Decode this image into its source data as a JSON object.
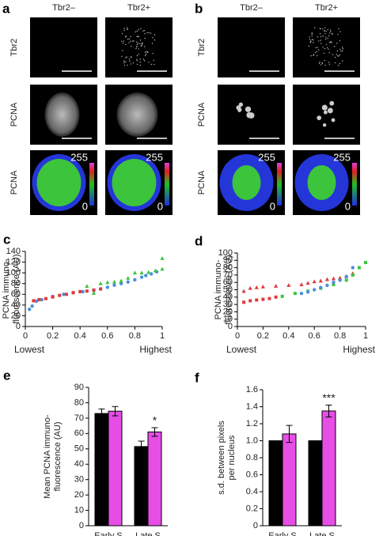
{
  "image_panels": [
    {
      "label": "a",
      "columns": [
        "Tbr2–",
        "Tbr2+"
      ],
      "rows": [
        "Tbr2",
        "PCNA",
        "PCNA"
      ],
      "scale": [
        "255",
        "0"
      ]
    },
    {
      "label": "b",
      "columns": [
        "Tbr2–",
        "Tbr2+"
      ],
      "rows": [
        "Tbr2",
        "PCNA",
        "PCNA"
      ],
      "scale": [
        "255",
        "0"
      ]
    }
  ],
  "chart_data": [
    {
      "type": "scatter",
      "label": "c",
      "ylabel": [
        "PCNA immuno-",
        "fluorescence (AU)"
      ],
      "x_end_labels": [
        "Lowest",
        "Highest"
      ],
      "xlim": [
        0,
        1
      ],
      "xticks": [
        0,
        0.2,
        0.4,
        0.6,
        0.8,
        1
      ],
      "ylim": [
        0,
        140
      ],
      "yticks": [
        0,
        20,
        40,
        60,
        80,
        100,
        120,
        140
      ],
      "grid": false,
      "series": [
        {
          "color": "#4a90d9",
          "marker": "circle",
          "x": [
            0.03,
            0.05,
            0.08,
            0.12,
            0.2,
            0.28,
            0.35,
            0.42,
            0.5,
            0.55,
            0.6,
            0.65,
            0.7,
            0.75,
            0.8,
            0.85,
            0.88,
            0.92,
            0.96
          ],
          "values": [
            32,
            38,
            47,
            50,
            56,
            60,
            63,
            65,
            67,
            70,
            73,
            77,
            80,
            83,
            87,
            92,
            95,
            98,
            102
          ]
        },
        {
          "color": "#e03a3a",
          "marker": "square",
          "x": [
            0.06,
            0.1,
            0.15,
            0.2,
            0.25,
            0.3,
            0.35,
            0.4,
            0.45,
            0.5,
            0.55
          ],
          "values": [
            48,
            50,
            52,
            55,
            58,
            60,
            63,
            65,
            66,
            68,
            70
          ]
        },
        {
          "color": "#3cc43c",
          "marker": "triangle",
          "x": [
            0.45,
            0.5,
            0.55,
            0.6,
            0.65,
            0.7,
            0.75,
            0.8,
            0.85,
            0.9,
            0.95,
            1,
            1
          ],
          "values": [
            75,
            62,
            80,
            82,
            83,
            85,
            90,
            100,
            100,
            101,
            104,
            107,
            127
          ]
        }
      ]
    },
    {
      "type": "scatter",
      "label": "d",
      "ylabel": [
        "PCNA immuno-",
        "fluorescence (AU)"
      ],
      "x_end_labels": [
        "Lowest",
        "Highest"
      ],
      "xlim": [
        0,
        1
      ],
      "xticks": [
        0,
        0.2,
        0.4,
        0.6,
        0.8,
        1
      ],
      "ylim": [
        0,
        100
      ],
      "yticks": [
        0,
        10,
        20,
        30,
        40,
        50,
        60,
        70,
        80,
        90,
        100
      ],
      "grid": false,
      "series": [
        {
          "color": "#e03a3a",
          "marker": "triangle",
          "x": [
            0.05,
            0.1,
            0.15,
            0.2,
            0.3,
            0.4,
            0.5,
            0.55,
            0.6,
            0.65,
            0.7,
            0.75,
            0.8,
            0.85,
            0.9
          ],
          "values": [
            48,
            52,
            53,
            54,
            55,
            56,
            57,
            59,
            61,
            62,
            64,
            65,
            66,
            68,
            72
          ]
        },
        {
          "color": "#e03a3a",
          "marker": "square",
          "x": [
            0.05,
            0.1,
            0.15,
            0.2,
            0.25,
            0.3
          ],
          "values": [
            33,
            35,
            36,
            37,
            38,
            40
          ]
        },
        {
          "color": "#3cc43c",
          "marker": "square",
          "x": [
            0.35,
            0.45,
            0.55,
            0.65,
            0.75,
            0.85,
            0.9,
            0.95,
            1
          ],
          "values": [
            41,
            45,
            48,
            52,
            57,
            63,
            70,
            80,
            87
          ]
        },
        {
          "color": "#4a90d9",
          "marker": "circle",
          "x": [
            0.5,
            0.55,
            0.6,
            0.65,
            0.7,
            0.75,
            0.8,
            0.85,
            0.9
          ],
          "values": [
            45,
            47,
            50,
            53,
            56,
            60,
            63,
            68,
            80
          ]
        }
      ]
    },
    {
      "type": "bar",
      "label": "e",
      "ylabel": [
        "Mean PCNA immuno-",
        "fluorescence (AU)"
      ],
      "categories": [
        "Early S",
        "Late S"
      ],
      "ylim": [
        0,
        90
      ],
      "yticks": [
        0,
        10,
        20,
        30,
        40,
        50,
        60,
        70,
        80,
        90
      ],
      "annotations": [
        "*"
      ],
      "series": [
        {
          "color": "#000000",
          "values": [
            73,
            51.5
          ],
          "errors": [
            3,
            3.5
          ]
        },
        {
          "color": "#e64ee6",
          "values": [
            74.5,
            61
          ],
          "errors": [
            3,
            2.8
          ]
        }
      ]
    },
    {
      "type": "bar",
      "label": "f",
      "ylabel": [
        "s.d. between pixels",
        "per nucleus"
      ],
      "categories": [
        "Early S",
        "Late S"
      ],
      "ylim": [
        0,
        1.6
      ],
      "yticks": [
        0,
        0.2,
        0.4,
        0.6,
        0.8,
        {
          "value": 1,
          "label": "1.0"
        },
        1.2,
        1.4,
        1.6
      ],
      "annotations": [
        "***"
      ],
      "series": [
        {
          "color": "#000000",
          "values": [
            1,
            1
          ]
        },
        {
          "color": "#e64ee6",
          "values": [
            1.08,
            1.35
          ],
          "errors": [
            0.1,
            0.07
          ]
        }
      ]
    }
  ]
}
